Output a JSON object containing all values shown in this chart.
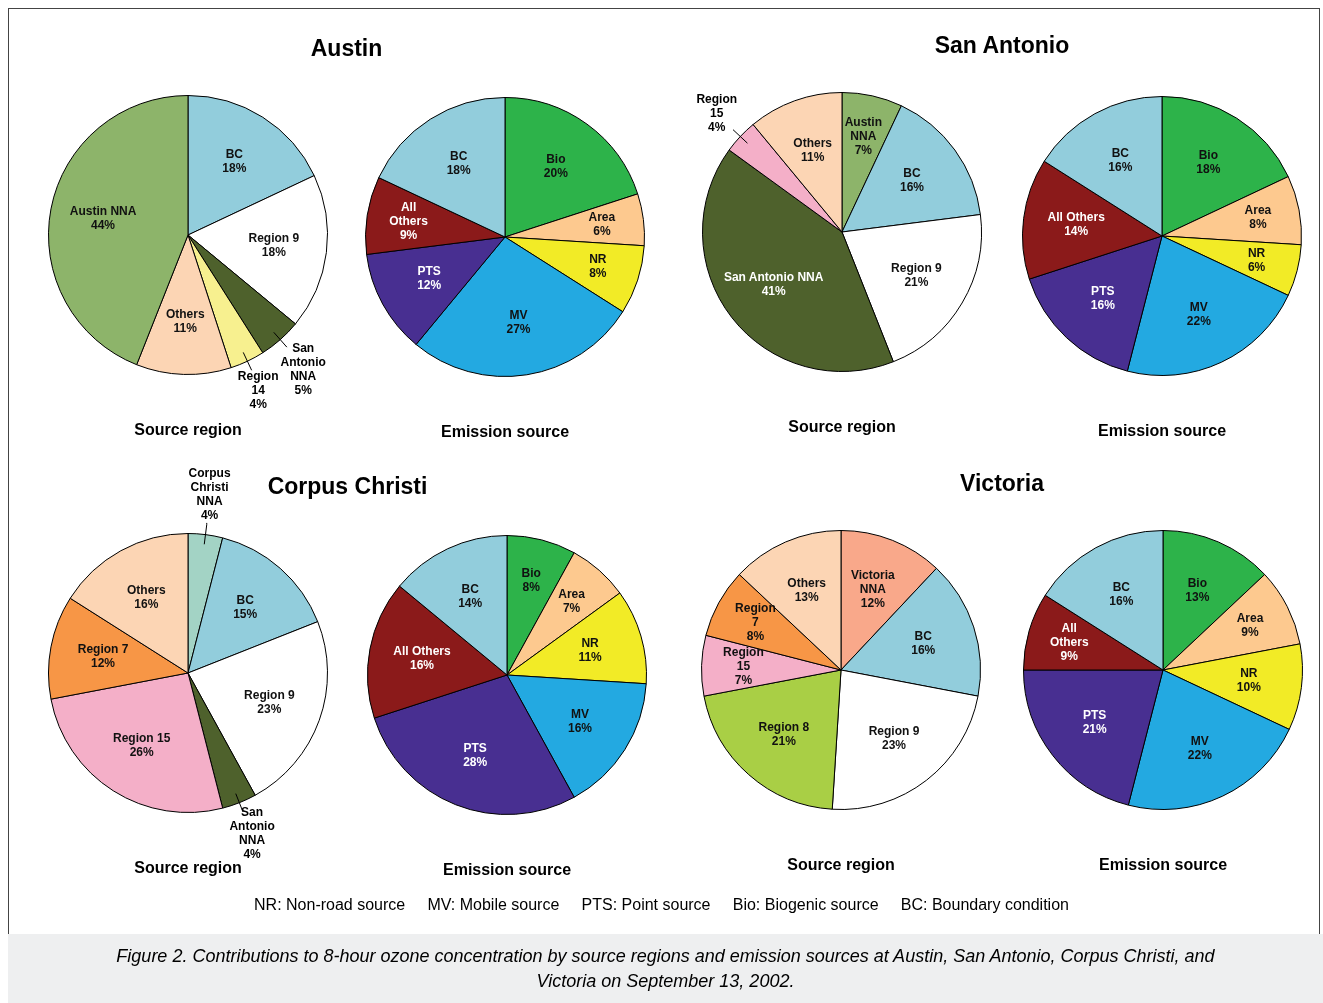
{
  "chart_data": [
    {
      "type": "pie",
      "title": "Austin",
      "xlabel": "Source region",
      "categories": [
        "BC",
        "Region 9",
        "San Antonio NNA",
        "Region 14",
        "Others",
        "Austin NNA"
      ],
      "values": [
        18,
        18,
        5,
        4,
        11,
        44
      ],
      "value_labels": [
        "18%",
        "18%",
        "5%",
        "4%",
        "11%",
        "44%"
      ],
      "colors": [
        "#92cddc",
        "#ffffff",
        "#4e612c",
        "#f7f08f",
        "#fcd5b4",
        "#8db46a"
      ]
    },
    {
      "type": "pie",
      "xlabel": "Emission source",
      "categories": [
        "Bio",
        "Area",
        "NR",
        "MV",
        "PTS",
        "All Others",
        "BC"
      ],
      "values": [
        20,
        6,
        8,
        27,
        12,
        9,
        18
      ],
      "value_labels": [
        "20%",
        "6%",
        "8%",
        "27%",
        "12%",
        "9%",
        "18%"
      ],
      "colors": [
        "#2db34a",
        "#fdc98f",
        "#f2eb26",
        "#23a9e1",
        "#482f91",
        "#8b1a1a",
        "#92cddc"
      ]
    },
    {
      "type": "pie",
      "title": "San Antonio",
      "xlabel": "Source region",
      "categories": [
        "Austin NNA",
        "BC",
        "Region 9",
        "San Antonio NNA",
        "Region 15",
        "Others"
      ],
      "values": [
        7,
        16,
        21,
        41,
        4,
        11
      ],
      "value_labels": [
        "7%",
        "16%",
        "21%",
        "41%",
        "4%",
        "11%"
      ],
      "colors": [
        "#8db46a",
        "#92cddc",
        "#ffffff",
        "#4e612c",
        "#f4afc8",
        "#fcd5b4"
      ]
    },
    {
      "type": "pie",
      "xlabel": "Emission source",
      "categories": [
        "Bio",
        "Area",
        "NR",
        "MV",
        "PTS",
        "All Others",
        "BC"
      ],
      "values": [
        18,
        8,
        6,
        22,
        16,
        14,
        16
      ],
      "value_labels": [
        "18%",
        "8%",
        "6%",
        "22%",
        "16%",
        "14%",
        "16%"
      ],
      "colors": [
        "#2db34a",
        "#fdc98f",
        "#f2eb26",
        "#23a9e1",
        "#482f91",
        "#8b1a1a",
        "#92cddc"
      ]
    },
    {
      "type": "pie",
      "title": "Corpus Christi",
      "xlabel": "Source region",
      "categories": [
        "Corpus Christi NNA",
        "BC",
        "Region 9",
        "San Antonio NNA",
        "Region 15",
        "Region 7",
        "Others"
      ],
      "values": [
        4,
        15,
        23,
        4,
        26,
        12,
        16
      ],
      "value_labels": [
        "4%",
        "15%",
        "23%",
        "4%",
        "26%",
        "12%",
        "16%"
      ],
      "colors": [
        "#a3d3c5",
        "#92cddc",
        "#ffffff",
        "#4e612c",
        "#f4afc8",
        "#f79646",
        "#fcd5b4"
      ]
    },
    {
      "type": "pie",
      "xlabel": "Emission source",
      "categories": [
        "Bio",
        "Area",
        "NR",
        "MV",
        "PTS",
        "All Others",
        "BC"
      ],
      "values": [
        8,
        7,
        11,
        16,
        28,
        16,
        14
      ],
      "value_labels": [
        "8%",
        "7%",
        "11%",
        "16%",
        "28%",
        "16%",
        "14%"
      ],
      "colors": [
        "#2db34a",
        "#fdc98f",
        "#f2eb26",
        "#23a9e1",
        "#482f91",
        "#8b1a1a",
        "#92cddc"
      ]
    },
    {
      "type": "pie",
      "title": "Victoria",
      "xlabel": "Source region",
      "categories": [
        "Victoria NNA",
        "BC",
        "Region 9",
        "Region 8",
        "Region 15",
        "Region 7",
        "Others"
      ],
      "values": [
        12,
        16,
        23,
        21,
        7,
        8,
        13
      ],
      "value_labels": [
        "12%",
        "16%",
        "23%",
        "21%",
        "7%",
        "8%",
        "13%"
      ],
      "colors": [
        "#f9a88a",
        "#92cddc",
        "#ffffff",
        "#a9cf45",
        "#f4afc8",
        "#f79646",
        "#fcd5b4"
      ]
    },
    {
      "type": "pie",
      "xlabel": "Emission source",
      "categories": [
        "Bio",
        "Area",
        "NR",
        "MV",
        "PTS",
        "All Others",
        "BC"
      ],
      "values": [
        13,
        9,
        10,
        22,
        21,
        9,
        16
      ],
      "value_labels": [
        "13%",
        "9%",
        "10%",
        "22%",
        "21%",
        "9%",
        "16%"
      ],
      "colors": [
        "#2db34a",
        "#fdc98f",
        "#f2eb26",
        "#23a9e1",
        "#482f91",
        "#8b1a1a",
        "#92cddc"
      ],
      "annotations": [
        "NR: Non-road source     MV: Mobile source     PTS: Point source     Bio: Biogenic source     BC: Boundary condition",
        "Figure 2. Contributions to 8-hour ozone concentration by source regions and emission sources at Austin, San Antonio, Corpus Christi, and Victoria on September 13, 2002."
      ]
    }
  ]
}
